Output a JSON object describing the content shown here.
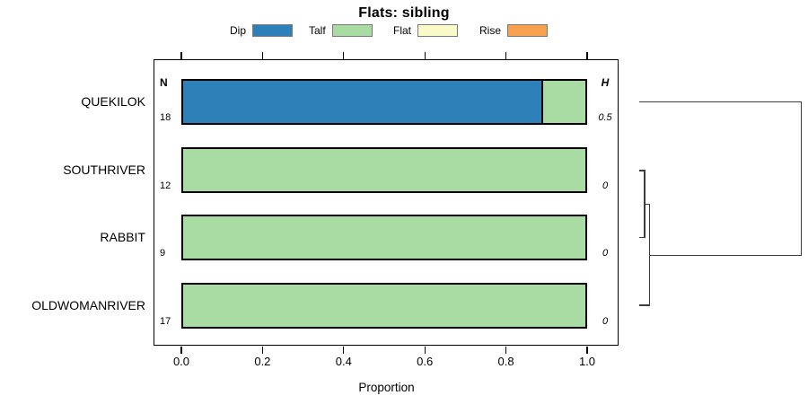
{
  "title": "Flats: sibling",
  "legend": [
    {
      "label": "Dip",
      "color": "#2E80B9"
    },
    {
      "label": "Talf",
      "color": "#A9DCA3"
    },
    {
      "label": "Flat",
      "color": "#FAFAC8"
    },
    {
      "label": "Rise",
      "color": "#F7A04E"
    }
  ],
  "columns": {
    "n_header": "N",
    "h_header": "H"
  },
  "rows": [
    {
      "label": "QUEKILOK",
      "n": "18",
      "h": "0.5"
    },
    {
      "label": "SOUTHRIVER",
      "n": "12",
      "h": "0"
    },
    {
      "label": "RABBIT",
      "n": "9",
      "h": "0"
    },
    {
      "label": "OLDWOMANRIVER",
      "n": "17",
      "h": "0"
    }
  ],
  "axis": {
    "xlabel": "Proportion",
    "tick_labels": [
      "0.0",
      "0.2",
      "0.4",
      "0.6",
      "0.8",
      "1.0"
    ]
  },
  "chart_data": {
    "type": "bar",
    "orientation": "horizontal",
    "stacked": true,
    "title": "Flats: sibling",
    "xlabel": "Proportion",
    "xlim": [
      0,
      1
    ],
    "xticks": [
      0,
      0.2,
      0.4,
      0.6,
      0.8,
      1
    ],
    "grid": false,
    "legend_position": "top",
    "categories": [
      "QUEKILOK",
      "SOUTHRIVER",
      "RABBIT",
      "OLDWOMANRIVER"
    ],
    "sample_sizes": [
      18,
      12,
      9,
      17
    ],
    "heights_H": [
      0.5,
      0,
      0,
      0
    ],
    "series": [
      {
        "name": "Dip",
        "color": "#2E80B9",
        "values": [
          0.89,
          0,
          0,
          0
        ]
      },
      {
        "name": "Talf",
        "color": "#A9DCA3",
        "values": [
          0.11,
          1,
          1,
          1
        ]
      },
      {
        "name": "Flat",
        "color": "#FAFAC8",
        "values": [
          0,
          0,
          0,
          0
        ]
      },
      {
        "name": "Rise",
        "color": "#F7A04E",
        "values": [
          0,
          0,
          0,
          0
        ]
      }
    ],
    "dendrogram": {
      "leaves": [
        "QUEKILOK",
        "SOUTHRIVER",
        "RABBIT",
        "OLDWOMANRIVER"
      ],
      "merges": [
        {
          "members": [
            "SOUTHRIVER",
            "RABBIT"
          ],
          "height": 0
        },
        {
          "members": [
            "SOUTHRIVER",
            "RABBIT",
            "OLDWOMANRIVER"
          ],
          "height": 0
        },
        {
          "members": [
            "QUEKILOK",
            "SOUTHRIVER",
            "RABBIT",
            "OLDWOMANRIVER"
          ],
          "height": 0.5
        }
      ]
    }
  }
}
